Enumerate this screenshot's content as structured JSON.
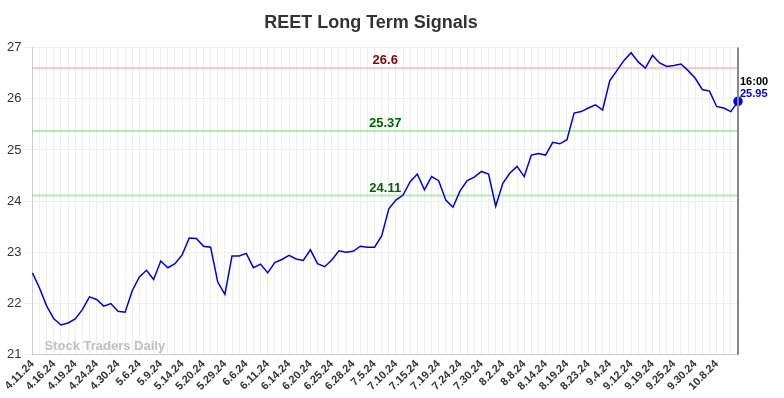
{
  "chart_data": {
    "type": "line",
    "title": "REET Long Term Signals",
    "watermark": "Stock Traders Daily",
    "end_time_label": "16:00",
    "end_value_label": "25.95",
    "color": "#0000dd",
    "grid": true,
    "ylim": [
      21,
      27
    ],
    "yticks": [
      21,
      22,
      23,
      24,
      25,
      26,
      27
    ],
    "hlines": [
      {
        "value": 26.6,
        "label": "26.6",
        "color": "#8b0000"
      },
      {
        "value": 25.37,
        "label": "25.37",
        "color": "#006400"
      },
      {
        "value": 24.11,
        "label": "24.11",
        "color": "#006400"
      }
    ],
    "categories": [
      "4.11.24",
      null,
      null,
      "4.16.24",
      null,
      null,
      "4.19.24",
      null,
      null,
      "4.24.24",
      null,
      null,
      "4.30.24",
      null,
      null,
      "5.6.24",
      null,
      null,
      "5.9.24",
      null,
      null,
      "5.14.24",
      null,
      null,
      "5.20.24",
      null,
      null,
      "5.29.24",
      null,
      null,
      "6.6.24",
      null,
      null,
      "6.11.24",
      null,
      null,
      "6.14.24",
      null,
      null,
      "6.20.24",
      null,
      null,
      "6.25.24",
      null,
      null,
      "6.28.24",
      null,
      null,
      "7.5.24",
      null,
      null,
      "7.10.24",
      null,
      null,
      "7.15.24",
      null,
      null,
      "7.19.24",
      null,
      null,
      "7.24.24",
      null,
      null,
      "7.30.24",
      null,
      null,
      "8.2.24",
      null,
      null,
      "8.8.24",
      null,
      null,
      "8.14.24",
      null,
      null,
      "8.19.24",
      null,
      null,
      "8.23.24",
      null,
      null,
      "9.4.24",
      null,
      null,
      "9.12.24",
      null,
      null,
      "9.19.24",
      null,
      null,
      "9.25.24",
      null,
      null,
      "9.30.24",
      null,
      null,
      "10.8.24",
      null,
      null,
      null
    ],
    "values": [
      22.6,
      22.3,
      21.95,
      21.7,
      21.58,
      21.62,
      21.7,
      21.88,
      22.13,
      22.08,
      21.95,
      22.0,
      21.85,
      21.83,
      22.25,
      22.52,
      22.65,
      22.47,
      22.83,
      22.7,
      22.78,
      22.95,
      23.28,
      23.27,
      23.12,
      23.1,
      22.42,
      22.18,
      22.93,
      22.93,
      22.98,
      22.7,
      22.77,
      22.6,
      22.8,
      22.86,
      22.94,
      22.87,
      22.84,
      23.05,
      22.78,
      22.72,
      22.85,
      23.03,
      23.0,
      23.02,
      23.12,
      23.1,
      23.1,
      23.32,
      23.85,
      24.02,
      24.12,
      24.38,
      24.53,
      24.22,
      24.48,
      24.4,
      24.02,
      23.88,
      24.2,
      24.4,
      24.47,
      24.58,
      24.53,
      23.9,
      24.35,
      24.55,
      24.68,
      24.48,
      24.9,
      24.93,
      24.9,
      25.15,
      25.12,
      25.2,
      25.72,
      25.75,
      25.82,
      25.88,
      25.78,
      26.35,
      26.55,
      26.75,
      26.9,
      26.72,
      26.6,
      26.85,
      26.7,
      26.63,
      26.65,
      26.68,
      26.55,
      26.4,
      26.18,
      26.15,
      25.85,
      25.82,
      25.75,
      25.95
    ]
  }
}
